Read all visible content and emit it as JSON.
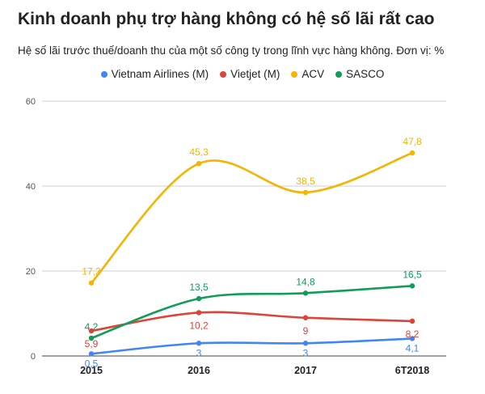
{
  "title": "Kinh doanh phụ trợ hàng không có hệ số lãi rất cao",
  "subtitle": "Hệ số lãi trước thuế/doanh thu của một số công ty trong lĩnh vực hàng không. Đơn vị: %",
  "chart_data": {
    "type": "line",
    "title": "Kinh doanh phụ trợ hàng không có hệ số lãi rất cao",
    "subtitle": "Hệ số lãi trước thuế/doanh thu của một số công ty trong lĩnh vực hàng không. Đơn vị: %",
    "categories": [
      "2015",
      "2016",
      "2017",
      "6T2018"
    ],
    "ylim": [
      0,
      60
    ],
    "yticks": [
      "0",
      "20",
      "40",
      "60"
    ],
    "grid": true,
    "legend_position": "top",
    "smooth": true,
    "series": [
      {
        "name": "Vietnam Airlines (M)",
        "color": "#4285f4",
        "values": [
          0.5,
          3,
          3,
          4.1
        ],
        "labels": [
          "0,5",
          "3",
          "3",
          "4,1"
        ]
      },
      {
        "name": "Vietjet (M)",
        "color": "#db4437",
        "values": [
          5.9,
          10.2,
          9,
          8.2
        ],
        "labels": [
          "5,9",
          "10,2",
          "9",
          "8,2"
        ]
      },
      {
        "name": "ACV",
        "color": "#f4b400",
        "values": [
          17.2,
          45.3,
          38.5,
          47.8
        ],
        "labels": [
          "17,2",
          "45,3",
          "38,5",
          "47,8"
        ]
      },
      {
        "name": "SASCO",
        "color": "#0f9d58",
        "values": [
          4.2,
          13.5,
          14.8,
          16.5
        ],
        "labels": [
          "4,2",
          "13,5",
          "14,8",
          "16,5"
        ]
      }
    ]
  }
}
